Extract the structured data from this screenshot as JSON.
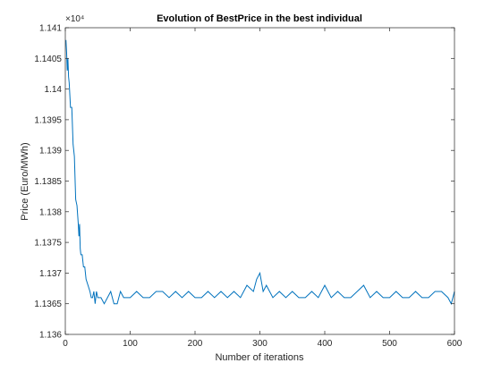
{
  "chart_data": {
    "type": "line",
    "title": "Evolution of BestPrice in the best individual",
    "xlabel": "Number of iterations",
    "ylabel": "Price (Euro/MWh)",
    "y_exponent_label": "×10⁴",
    "xlim": [
      0,
      600
    ],
    "ylim": [
      1.136,
      1.141
    ],
    "xticks": [
      0,
      100,
      200,
      300,
      400,
      500,
      600
    ],
    "xtick_labels": [
      "0",
      "100",
      "200",
      "300",
      "400",
      "500",
      "600"
    ],
    "yticks": [
      1.136,
      1.1365,
      1.137,
      1.1375,
      1.138,
      1.1385,
      1.139,
      1.1395,
      1.14,
      1.1405,
      1.141
    ],
    "ytick_labels": [
      "1.136",
      "1.1365",
      "1.137",
      "1.1375",
      "1.138",
      "1.1385",
      "1.139",
      "1.1395",
      "1.14",
      "1.1405",
      "1.141"
    ],
    "grid": false,
    "series": [
      {
        "color": "#0072BD",
        "x": [
          1,
          2,
          3,
          4,
          5,
          6,
          8,
          10,
          12,
          14,
          16,
          18,
          20,
          21,
          22,
          23,
          24,
          26,
          28,
          30,
          32,
          35,
          38,
          40,
          42,
          44,
          46,
          48,
          50,
          55,
          60,
          65,
          70,
          75,
          80,
          85,
          90,
          95,
          100,
          110,
          120,
          130,
          140,
          150,
          160,
          170,
          180,
          190,
          200,
          210,
          220,
          230,
          240,
          250,
          260,
          270,
          280,
          290,
          295,
          300,
          305,
          310,
          320,
          330,
          340,
          350,
          360,
          370,
          380,
          390,
          400,
          410,
          420,
          430,
          440,
          450,
          460,
          470,
          480,
          490,
          500,
          510,
          520,
          530,
          540,
          550,
          560,
          570,
          580,
          590,
          595,
          600
        ],
        "y": [
          1.1408,
          1.1406,
          1.1403,
          1.1405,
          1.1402,
          1.1401,
          1.1397,
          1.1397,
          1.1391,
          1.1389,
          1.1382,
          1.1381,
          1.1378,
          1.1376,
          1.1378,
          1.1374,
          1.1373,
          1.1373,
          1.1371,
          1.1371,
          1.1369,
          1.1368,
          1.1367,
          1.1366,
          1.1366,
          1.1367,
          1.1365,
          1.1367,
          1.1366,
          1.1366,
          1.1365,
          1.1366,
          1.1367,
          1.1365,
          1.1365,
          1.1367,
          1.1366,
          1.1366,
          1.1366,
          1.1367,
          1.1366,
          1.1366,
          1.1367,
          1.1367,
          1.1366,
          1.1367,
          1.1366,
          1.1367,
          1.1366,
          1.1366,
          1.1367,
          1.1366,
          1.1367,
          1.1366,
          1.1367,
          1.1366,
          1.1368,
          1.1367,
          1.1369,
          1.137,
          1.1367,
          1.1368,
          1.1366,
          1.1367,
          1.1366,
          1.1367,
          1.1366,
          1.1366,
          1.1367,
          1.1366,
          1.1368,
          1.1366,
          1.1367,
          1.1366,
          1.1366,
          1.1367,
          1.1368,
          1.1366,
          1.1367,
          1.1366,
          1.1366,
          1.1367,
          1.1366,
          1.1366,
          1.1367,
          1.1366,
          1.1366,
          1.1367,
          1.1367,
          1.1366,
          1.1365,
          1.1367
        ]
      }
    ]
  }
}
